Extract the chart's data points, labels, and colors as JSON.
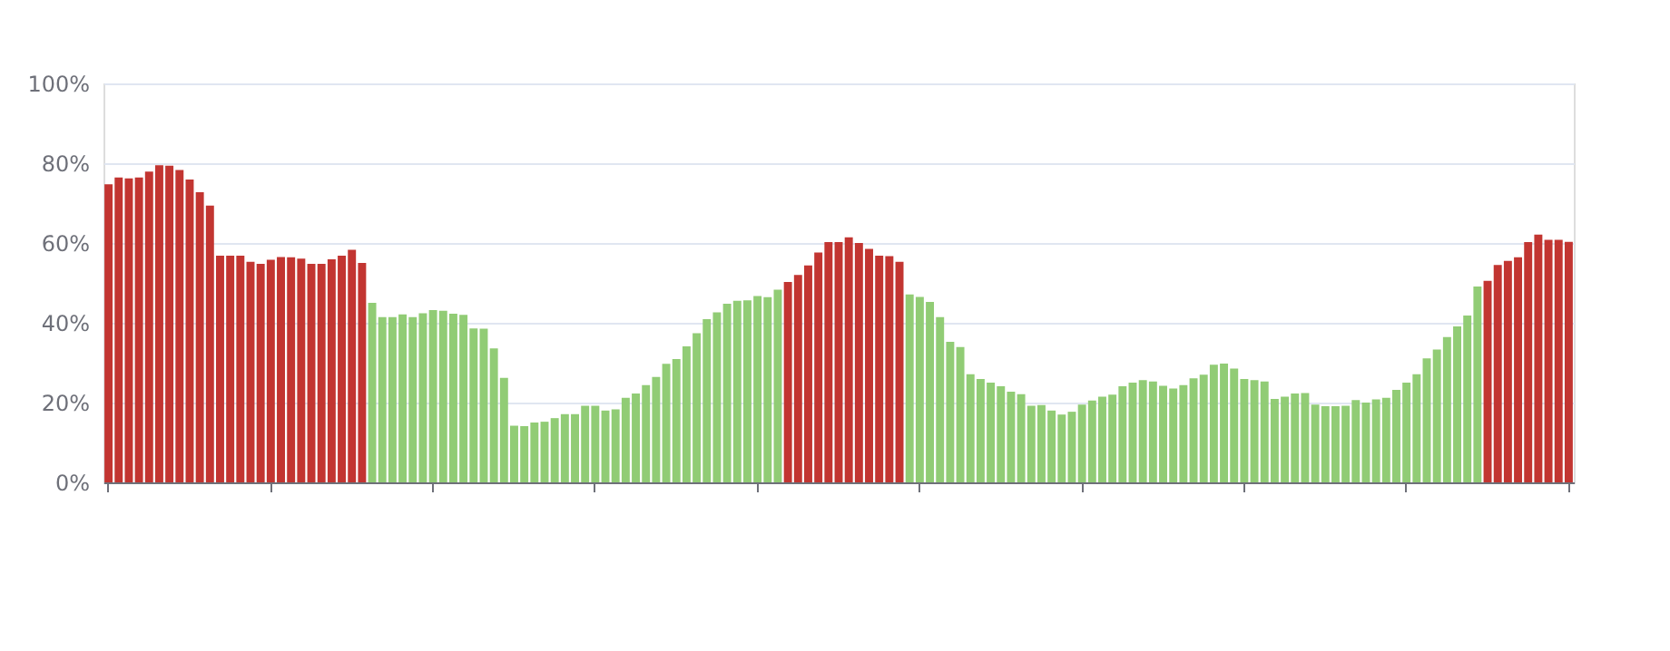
{
  "chart_data": {
    "type": "bar",
    "categories": [
      null,
      null,
      null,
      null,
      null,
      null,
      null,
      null,
      null,
      null,
      null,
      null,
      null,
      null,
      null,
      null,
      null,
      null,
      null,
      null,
      null,
      null,
      null,
      null,
      null,
      null,
      null,
      null,
      null,
      null,
      null,
      null,
      null,
      null,
      null,
      null,
      null,
      null,
      null,
      null,
      null,
      null,
      null,
      null,
      null,
      null,
      null,
      null,
      null,
      null,
      null,
      null,
      null,
      null,
      null,
      null,
      null,
      null,
      null,
      null,
      null,
      null,
      null,
      null,
      null,
      null,
      null,
      null,
      null,
      null,
      null,
      null,
      null,
      null,
      null,
      null,
      null,
      null,
      null,
      null,
      null,
      null,
      null,
      null,
      null,
      null,
      null,
      null,
      null,
      null,
      null,
      null,
      null,
      null,
      null,
      null,
      null,
      null,
      null,
      null,
      null,
      null,
      null,
      null,
      null,
      null,
      null,
      null,
      null,
      null,
      null,
      null,
      null,
      null,
      null,
      null,
      null,
      null,
      null,
      null,
      null,
      null,
      null,
      null,
      null,
      null,
      null,
      null,
      null,
      null,
      null,
      null,
      null,
      null,
      null,
      null,
      null,
      null,
      null,
      null,
      null,
      null,
      null,
      null,
      null
    ],
    "values": [
      74.7,
      76.4,
      76.2,
      76.4,
      77.9,
      79.5,
      79.4,
      78.3,
      75.9,
      72.7,
      69.4,
      56.8,
      56.8,
      56.8,
      55.3,
      54.8,
      55.8,
      56.5,
      56.4,
      56.1,
      54.8,
      54.8,
      55.9,
      56.8,
      58.3,
      55.0,
      45.0,
      41.4,
      41.4,
      42.1,
      41.4,
      42.4,
      43.2,
      43.0,
      42.3,
      42.0,
      38.6,
      38.5,
      33.6,
      26.2,
      14.2,
      14.1,
      15.0,
      15.2,
      16.1,
      17.1,
      17.1,
      19.2,
      19.2,
      18.0,
      18.3,
      21.2,
      22.3,
      24.4,
      26.4,
      29.7,
      30.9,
      34.1,
      37.4,
      40.9,
      42.6,
      44.8,
      45.5,
      45.6,
      46.7,
      46.4,
      48.3,
      50.2,
      52.0,
      54.4,
      57.6,
      60.2,
      60.2,
      61.4,
      60.0,
      58.5,
      56.8,
      56.7,
      55.3,
      47.1,
      46.5,
      45.2,
      41.4,
      35.2,
      33.9,
      27.1,
      25.9,
      25.0,
      24.1,
      22.7,
      22.1,
      19.2,
      19.4,
      18.0,
      17.0,
      17.7,
      19.5,
      20.5,
      21.5,
      22.0,
      24.1,
      25.0,
      25.6,
      25.3,
      24.2,
      23.5,
      24.4,
      26.1,
      27.0,
      29.5,
      29.8,
      28.5,
      25.9,
      25.6,
      25.3,
      20.9,
      21.5,
      22.3,
      22.4,
      19.5,
      19.1,
      19.1,
      19.2,
      20.6,
      20.0,
      20.8,
      21.2,
      23.2,
      25.0,
      27.1,
      31.1,
      33.3,
      36.4,
      39.1,
      41.8,
      49.1,
      50.5,
      54.5,
      55.5,
      56.4,
      60.2,
      62.1,
      60.8,
      60.8,
      60.3
    ],
    "colors": [
      "#c23531",
      "#c23531",
      "#c23531",
      "#c23531",
      "#c23531",
      "#c23531",
      "#c23531",
      "#c23531",
      "#c23531",
      "#c23531",
      "#c23531",
      "#c23531",
      "#c23531",
      "#c23531",
      "#c23531",
      "#c23531",
      "#c23531",
      "#c23531",
      "#c23531",
      "#c23531",
      "#c23531",
      "#c23531",
      "#c23531",
      "#c23531",
      "#c23531",
      "#c23531",
      "#91cc75",
      "#91cc75",
      "#91cc75",
      "#91cc75",
      "#91cc75",
      "#91cc75",
      "#91cc75",
      "#91cc75",
      "#91cc75",
      "#91cc75",
      "#91cc75",
      "#91cc75",
      "#91cc75",
      "#91cc75",
      "#91cc75",
      "#91cc75",
      "#91cc75",
      "#91cc75",
      "#91cc75",
      "#91cc75",
      "#91cc75",
      "#91cc75",
      "#91cc75",
      "#91cc75",
      "#91cc75",
      "#91cc75",
      "#91cc75",
      "#91cc75",
      "#91cc75",
      "#91cc75",
      "#91cc75",
      "#91cc75",
      "#91cc75",
      "#91cc75",
      "#91cc75",
      "#91cc75",
      "#91cc75",
      "#91cc75",
      "#91cc75",
      "#91cc75",
      "#91cc75",
      "#c23531",
      "#c23531",
      "#c23531",
      "#c23531",
      "#c23531",
      "#c23531",
      "#c23531",
      "#c23531",
      "#c23531",
      "#c23531",
      "#c23531",
      "#c23531",
      "#91cc75",
      "#91cc75",
      "#91cc75",
      "#91cc75",
      "#91cc75",
      "#91cc75",
      "#91cc75",
      "#91cc75",
      "#91cc75",
      "#91cc75",
      "#91cc75",
      "#91cc75",
      "#91cc75",
      "#91cc75",
      "#91cc75",
      "#91cc75",
      "#91cc75",
      "#91cc75",
      "#91cc75",
      "#91cc75",
      "#91cc75",
      "#91cc75",
      "#91cc75",
      "#91cc75",
      "#91cc75",
      "#91cc75",
      "#91cc75",
      "#91cc75",
      "#91cc75",
      "#91cc75",
      "#91cc75",
      "#91cc75",
      "#91cc75",
      "#91cc75",
      "#91cc75",
      "#91cc75",
      "#91cc75",
      "#91cc75",
      "#91cc75",
      "#91cc75",
      "#91cc75",
      "#91cc75",
      "#91cc75",
      "#91cc75",
      "#91cc75",
      "#91cc75",
      "#91cc75",
      "#91cc75",
      "#91cc75",
      "#91cc75",
      "#91cc75",
      "#91cc75",
      "#91cc75",
      "#91cc75",
      "#91cc75",
      "#91cc75",
      "#91cc75",
      "#c23531",
      "#c23531",
      "#c23531",
      "#c23531",
      "#c23531",
      "#c23531",
      "#c23531",
      "#c23531",
      "#c23531"
    ],
    "ylim": [
      0,
      100
    ],
    "yticks": [
      {
        "value": 0,
        "label": "0%"
      },
      {
        "value": 20,
        "label": "20%"
      },
      {
        "value": 40,
        "label": "40%"
      },
      {
        "value": 60,
        "label": "60%"
      },
      {
        "value": 80,
        "label": "80%"
      },
      {
        "value": 100,
        "label": "100%"
      }
    ],
    "grid": "y",
    "tick_labels": "y"
  }
}
